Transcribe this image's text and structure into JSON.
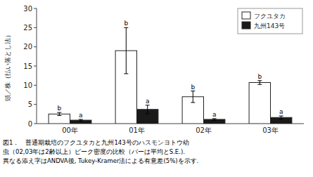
{
  "chart_data": {
    "type": "bar",
    "categories": [
      "00年",
      "01年",
      "02年",
      "03年"
    ],
    "series": [
      {
        "name": "フクユタカ",
        "color": "#ffffff",
        "values": [
          2.5,
          19.0,
          7.0,
          10.7
        ],
        "errors": [
          0.4,
          6.0,
          1.5,
          0.5
        ],
        "labels": [
          "b",
          "b",
          "b",
          "b"
        ]
      },
      {
        "name": "九州143号",
        "color": "#1a1a1a",
        "values": [
          0.9,
          3.7,
          1.1,
          1.6
        ],
        "errors": [
          0.2,
          1.1,
          0.2,
          0.4
        ],
        "labels": [
          "a",
          "a",
          "a",
          "a"
        ]
      }
    ],
    "ylabel": "頭／株（払い落とし法）",
    "ylim": [
      0,
      30
    ],
    "yticks": [
      0,
      5,
      10,
      15,
      20,
      25,
      30
    ],
    "legend": "upper right",
    "caption": [
      "図1．　普通期栽培のフクユタカと九州143号のハスモンヨトウ幼",
      "虫（02,03年は2齢以上）ピーク密度の比較（バーは平均とS.E.).",
      "異なる添え字はANDVA後, Tukey-Kramer法による有意差(5%)を示す."
    ]
  }
}
